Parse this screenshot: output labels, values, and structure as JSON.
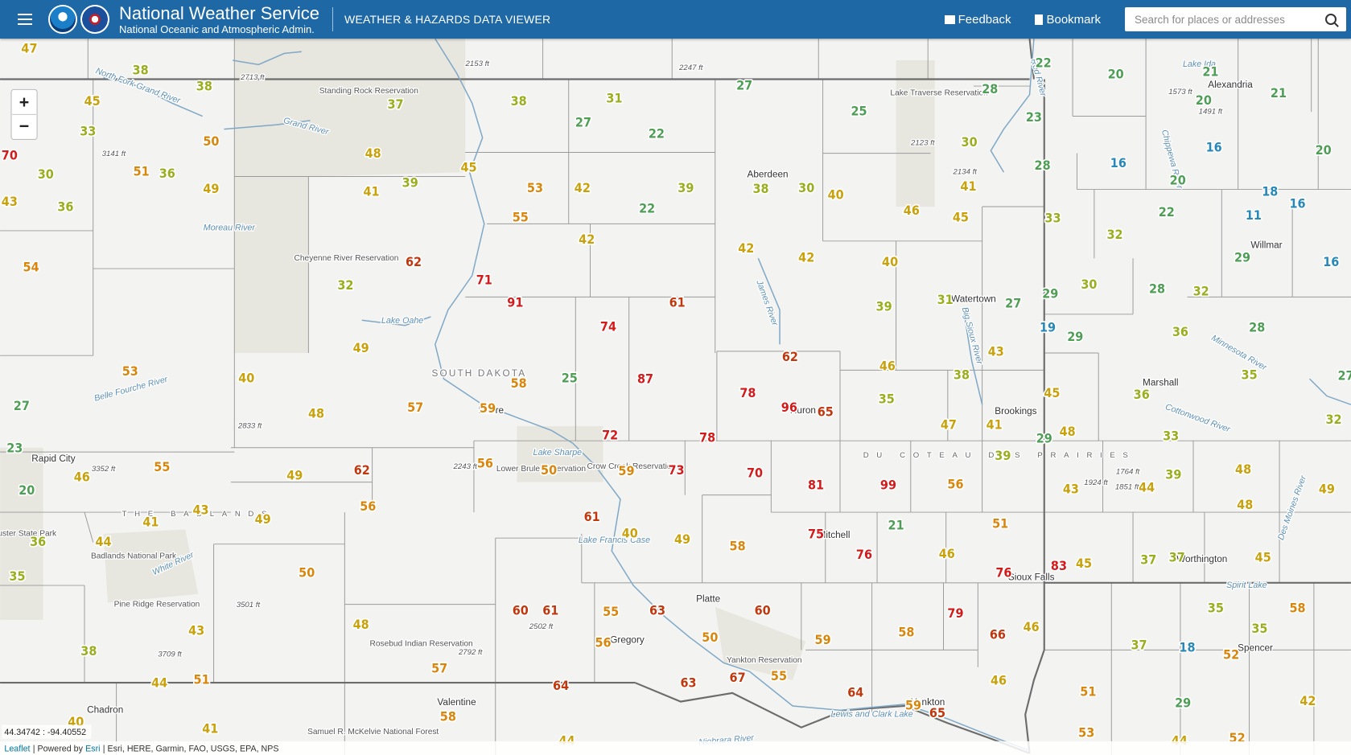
{
  "header": {
    "title": "National Weather Service",
    "subtitle": "National Oceanic and Atmospheric Admin.",
    "app_title": "WEATHER & HAZARDS DATA VIEWER",
    "feedback": "Feedback",
    "bookmark": "Bookmark",
    "search_placeholder": "Search for places or addresses"
  },
  "map": {
    "zoom_in": "+",
    "zoom_out": "−",
    "coordinates": "44.34742 : -94.40552",
    "attribution": {
      "leaflet": "Leaflet",
      "powered_by": "| Powered by",
      "esri": "Esri",
      "sources": "| Esri, HERE, Garmin, FAO, USGS, EPA, NPS"
    },
    "temperatures": [
      47,
      38,
      38,
      45,
      33,
      50,
      70,
      51,
      36,
      30,
      49,
      43,
      36,
      54,
      37,
      48,
      41,
      39,
      62,
      32,
      38,
      31,
      27,
      22,
      45,
      53,
      42,
      39,
      22,
      55,
      42,
      71,
      91,
      74,
      61,
      87,
      25,
      58,
      59,
      57,
      49,
      40,
      53,
      48,
      27,
      23,
      46,
      55,
      49,
      62,
      56,
      50,
      59,
      73,
      72,
      78,
      70,
      61,
      40,
      49,
      58,
      56,
      49,
      43,
      41,
      44,
      36,
      20,
      35,
      50,
      43,
      48,
      38,
      44,
      51,
      57,
      58,
      60,
      61,
      55,
      63,
      56,
      50,
      60,
      55,
      67,
      63,
      64,
      59,
      64,
      59,
      65,
      58,
      79,
      66,
      46,
      46,
      51,
      53,
      76,
      83,
      45,
      37,
      37,
      45,
      35,
      35,
      58,
      37,
      18,
      52,
      29,
      42,
      52,
      44,
      40,
      41,
      44,
      27,
      25,
      28,
      30,
      41,
      45,
      46,
      40,
      30,
      38,
      42,
      42,
      40,
      39,
      31,
      27,
      43,
      38,
      46,
      35,
      47,
      41,
      39,
      56,
      99,
      81,
      96,
      65,
      78,
      62,
      75,
      76,
      21,
      46,
      51,
      43,
      44,
      39,
      48,
      48,
      49,
      22,
      20,
      21,
      20,
      21,
      23,
      28,
      16,
      16,
      20,
      20,
      18,
      11,
      16,
      16,
      33,
      32,
      22,
      29,
      30,
      28,
      32,
      29,
      19,
      29,
      36,
      28,
      35,
      36,
      45,
      48,
      29,
      33,
      32,
      27
    ],
    "places": [
      "Aberdeen",
      "Watertown",
      "Brookings",
      "Marshall",
      "Willmar",
      "Alexandria",
      "Pierre",
      "Rapid City",
      "Mitchell",
      "Sioux Falls",
      "Worthington",
      "Spencer",
      "Platte",
      "Gregory",
      "Yankton",
      "Chadron",
      "Valentine",
      "Huron",
      "SOUTH DAKOTA",
      "THE BADLANDS",
      "DU COTEAU DES PRAIRIES",
      "Standing Rock Reservation",
      "Cheyenne River Reservation",
      "Lake Traverse Reservation",
      "Crow Creek Reservation",
      "Lower Brule Reservation",
      "Pine Ridge Reservation",
      "Rosebud Indian Reservation",
      "Yankton Reservation",
      "Badlands National Park",
      "Custer State Park",
      "Samuel R. McKelvie National Forest",
      "Lake Oahe",
      "Lake Sharpe",
      "Lake Francis Case",
      "Lewis and Clark Lake",
      "Grand River",
      "North Fork Grand River",
      "Moreau River",
      "Belle Fourche River",
      "White River",
      "James River",
      "Big Sioux River",
      "Minnesota River",
      "Cottonwood River",
      "Des Moines River",
      "Niobrara River",
      "Red River",
      "Chippewa River",
      "Lake Ida",
      "Spirit Lake",
      "2153 ft",
      "2247 ft",
      "2713 ft",
      "3141 ft",
      "1573 ft",
      "1491 ft",
      "2123 ft",
      "2134 ft",
      "2833 ft",
      "3352 ft",
      "2243 ft",
      "1764 ft",
      "1851 ft",
      "1924 ft",
      "3501 ft",
      "2502 ft",
      "2792 ft",
      "3709 ft"
    ]
  }
}
